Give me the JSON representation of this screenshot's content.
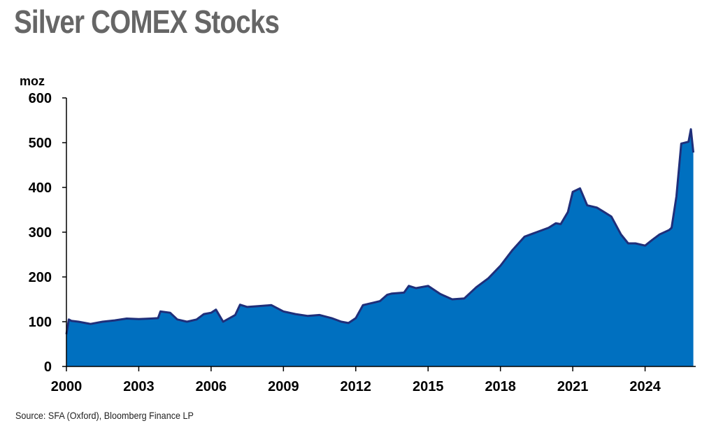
{
  "title": "Silver COMEX Stocks",
  "source": "Source: SFA (Oxford), Bloomberg Finance LP",
  "chart_data": {
    "type": "area",
    "title": "Silver COMEX Stocks",
    "ylabel": "moz",
    "xlabel": "",
    "ylim": [
      0,
      600
    ],
    "xlim": [
      2000,
      2026.1
    ],
    "yticks": [
      0,
      100,
      200,
      300,
      400,
      500,
      600
    ],
    "xticks": [
      2000,
      2003,
      2006,
      2009,
      2012,
      2015,
      2018,
      2021,
      2024
    ],
    "grid": false,
    "legend": "none",
    "colors": {
      "fill": "#0070C0",
      "line": "#1F2F7A"
    },
    "x": [
      2000.0,
      2000.1,
      2000.2,
      2000.5,
      2001.0,
      2001.5,
      2002.0,
      2002.5,
      2003.0,
      2003.5,
      2003.8,
      2003.9,
      2004.3,
      2004.6,
      2005.0,
      2005.4,
      2005.7,
      2006.0,
      2006.2,
      2006.5,
      2007.0,
      2007.2,
      2007.5,
      2008.0,
      2008.5,
      2009.0,
      2009.5,
      2010.0,
      2010.5,
      2011.0,
      2011.4,
      2011.7,
      2012.0,
      2012.3,
      2012.7,
      2013.0,
      2013.3,
      2013.5,
      2014.0,
      2014.2,
      2014.5,
      2015.0,
      2015.5,
      2016.0,
      2016.5,
      2017.0,
      2017.5,
      2018.0,
      2018.5,
      2019.0,
      2019.5,
      2020.0,
      2020.3,
      2020.5,
      2020.8,
      2021.0,
      2021.3,
      2021.6,
      2022.0,
      2022.3,
      2022.6,
      2023.0,
      2023.3,
      2023.6,
      2024.0,
      2024.3,
      2024.6,
      2025.0,
      2025.1,
      2025.3,
      2025.5,
      2025.8,
      2025.9,
      2026.0
    ],
    "y": [
      72,
      105,
      102,
      100,
      95,
      100,
      103,
      107,
      106,
      107,
      108,
      123,
      120,
      105,
      100,
      105,
      117,
      120,
      127,
      100,
      115,
      138,
      133,
      135,
      137,
      123,
      117,
      113,
      115,
      108,
      100,
      97,
      108,
      137,
      142,
      146,
      160,
      163,
      165,
      180,
      175,
      180,
      162,
      150,
      152,
      177,
      197,
      225,
      260,
      290,
      300,
      310,
      320,
      318,
      345,
      390,
      398,
      360,
      355,
      345,
      335,
      295,
      275,
      275,
      270,
      283,
      295,
      305,
      310,
      380,
      498,
      502,
      530,
      478
    ]
  }
}
